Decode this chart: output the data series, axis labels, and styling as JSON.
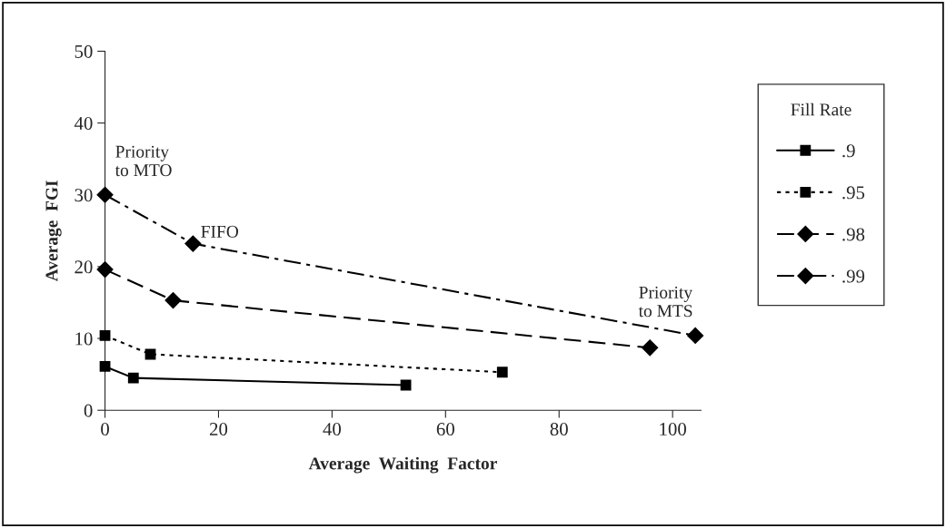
{
  "chart_data": {
    "type": "line",
    "xlabel": "Average  Waiting  Factor",
    "ylabel": "Average  FGI",
    "xlim": [
      0,
      105
    ],
    "xticks": [
      0,
      20,
      40,
      60,
      80,
      100
    ],
    "ylim": [
      0,
      50
    ],
    "yticks": [
      0,
      10,
      20,
      30,
      40,
      50
    ],
    "grid": false,
    "legend": "right",
    "legend_title": "Fill Rate",
    "series": [
      {
        "name": ".9",
        "color": "#000000",
        "x": [
          0,
          5,
          53
        ],
        "values": [
          6.1,
          4.5,
          3.5
        ],
        "marker": "square",
        "line_style": "solid"
      },
      {
        "name": ".95",
        "color": "#000000",
        "x": [
          0,
          8,
          70
        ],
        "values": [
          10.4,
          7.8,
          5.3
        ],
        "marker": "square",
        "line_style": "dotted"
      },
      {
        "name": ".98",
        "color": "#000000",
        "x": [
          0,
          12,
          96
        ],
        "values": [
          19.6,
          15.3,
          8.7
        ],
        "marker": "diamond",
        "line_style": "dashed"
      },
      {
        "name": ".99",
        "color": "#000000",
        "x": [
          0,
          15.5,
          104
        ],
        "values": [
          30,
          23.2,
          10.4
        ],
        "marker": "diamond",
        "line_style": "dashdot"
      }
    ],
    "annotations": [
      {
        "text": "Priority\nto MTO",
        "x": 0,
        "y": 30
      },
      {
        "text": "FIFO",
        "x": 15.5,
        "y": 23.2
      },
      {
        "text": "Priority\nto MTS",
        "x": 104,
        "y": 10.4
      }
    ]
  }
}
